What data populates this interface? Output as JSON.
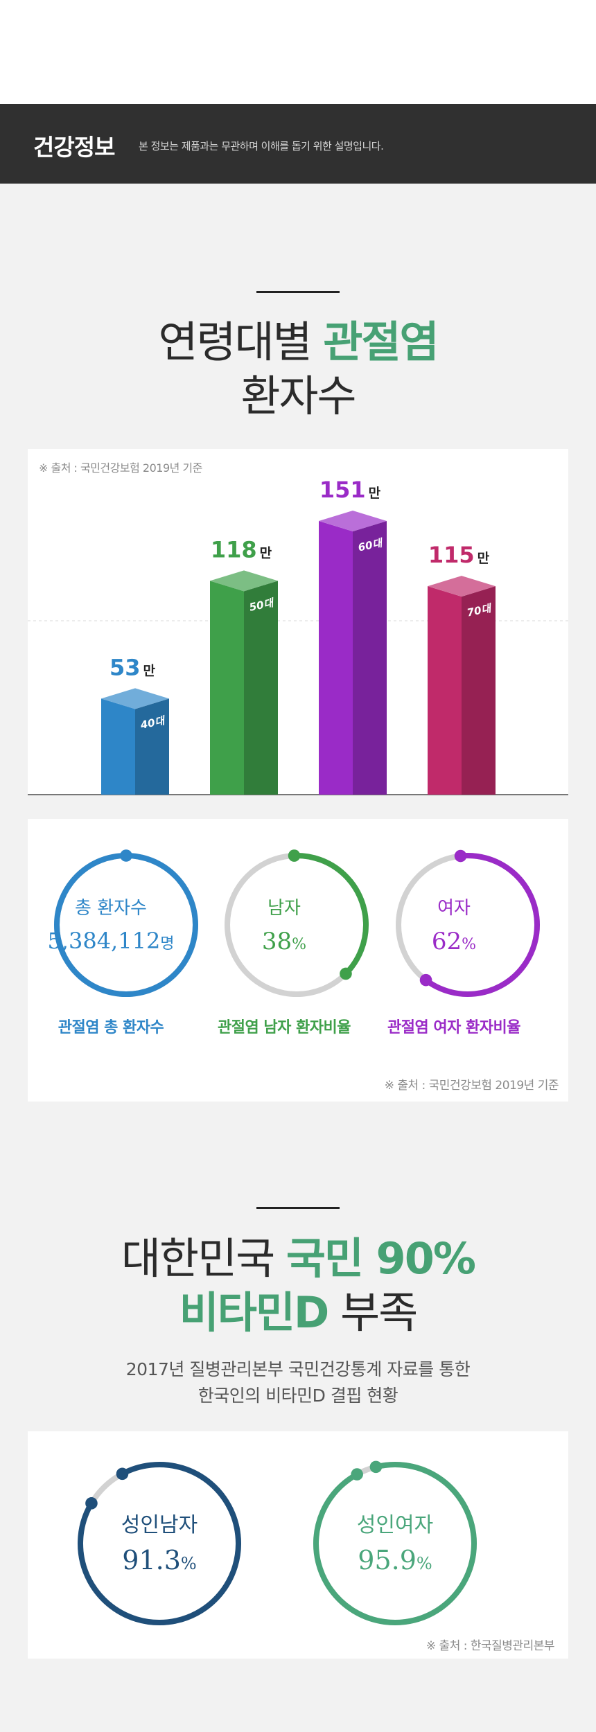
{
  "header": {
    "title": "건강정보",
    "description": "본 정보는 제품과는 무관하며 이해를 돕기 위한 설명입니다."
  },
  "section1": {
    "title_line1_plain": "연령대별 ",
    "title_line1_highlight": "관절염",
    "title_line2": "환자수",
    "source": "※ 출처 : 국민건강보험 2019년 기준",
    "chart_data": {
      "type": "bar",
      "categories": [
        "40대",
        "50대",
        "60대",
        "70대"
      ],
      "values": [
        53,
        118,
        151,
        115
      ],
      "value_suffix": "만",
      "colors": [
        "#2e86c8",
        "#3fa04a",
        "#9a2bc7",
        "#c02a6a"
      ]
    }
  },
  "stats": {
    "source": "※ 출처 : 국민건강보험 2019년 기준",
    "rings": [
      {
        "label": "총 환자수",
        "value": "5,384,112",
        "unit": "명",
        "caption": "관절염 총 환자수",
        "color": "#2e86c8",
        "fraction": 1.0
      },
      {
        "label": "남자",
        "value": "38",
        "unit": "%",
        "caption": "관절염 남자 환자비율",
        "color": "#3fa04a",
        "fraction": 0.38
      },
      {
        "label": "여자",
        "value": "62",
        "unit": "%",
        "caption": "관절염 여자 환자비율",
        "color": "#9a2bc7",
        "fraction": 0.62
      }
    ]
  },
  "section2": {
    "title_line1_plain": "대한민국 ",
    "title_line1_highlight": "국민 90%",
    "title_line2_highlight": "비타민D",
    "title_line2_plain": " 부족",
    "subtitle_line1": "2017년 질병관리본부 국민건강통계 자료를 통한",
    "subtitle_line2": "한국인의 비타민D 결핍 현황",
    "source": "※ 출처 : 한국질병관리본부",
    "rings": [
      {
        "label": "성인남자",
        "value": "91.3",
        "unit": "%",
        "color": "#1f4f7a",
        "fraction": 0.913
      },
      {
        "label": "성인여자",
        "value": "95.9",
        "unit": "%",
        "color": "#4aa67b",
        "fraction": 0.959
      }
    ]
  }
}
